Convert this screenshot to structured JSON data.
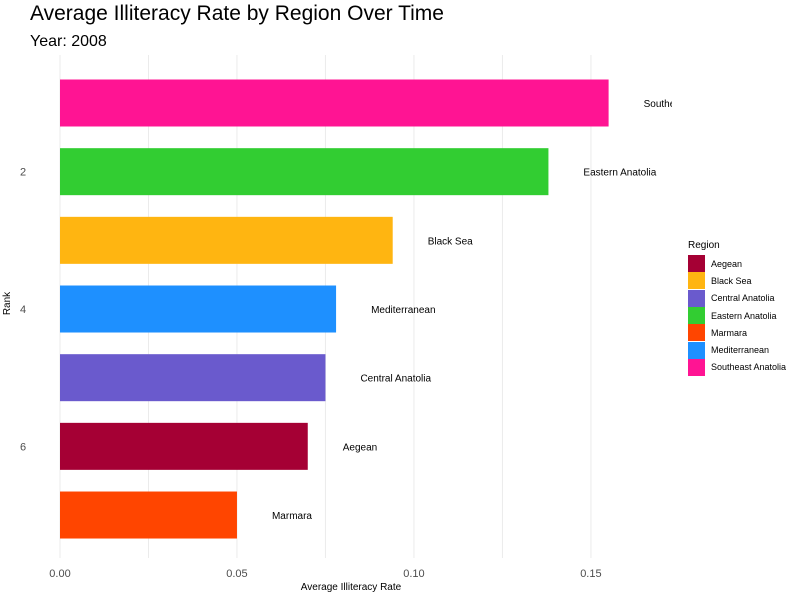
{
  "chart_data": {
    "type": "bar",
    "orientation": "horizontal",
    "title": "Average Illiteracy Rate by Region Over Time",
    "subtitle": "Year: 2008",
    "xlabel": "Average Illiteracy Rate",
    "ylabel": "Rank",
    "xlim": [
      0,
      0.175
    ],
    "x_ticks": [
      "0.00",
      "0.05",
      "0.10",
      "0.15"
    ],
    "x_tick_values": [
      0,
      0.05,
      0.1,
      0.15
    ],
    "y_ticks": [
      "2",
      "4",
      "6"
    ],
    "y_tick_values": [
      2,
      4,
      6
    ],
    "grid": true,
    "legend_placement": "right",
    "legend_title": "Region",
    "bars": [
      {
        "rank": 1,
        "label": "Southe",
        "region": "Southeast Anatolia",
        "value": 0.155,
        "color": "#FF1493"
      },
      {
        "rank": 2,
        "label": "Eastern Anatolia",
        "region": "Eastern Anatolia",
        "value": 0.138,
        "color": "#32CD32"
      },
      {
        "rank": 3,
        "label": "Black Sea",
        "region": "Black Sea",
        "value": 0.094,
        "color": "#FFB511"
      },
      {
        "rank": 4,
        "label": "Mediterranean",
        "region": "Mediterranean",
        "value": 0.078,
        "color": "#1E90FF"
      },
      {
        "rank": 5,
        "label": "Central Anatolia",
        "region": "Central Anatolia",
        "value": 0.075,
        "color": "#6A5ACD"
      },
      {
        "rank": 6,
        "label": "Aegean",
        "region": "Aegean",
        "value": 0.07,
        "color": "#A50034"
      },
      {
        "rank": 7,
        "label": "Marmara",
        "region": "Marmara",
        "value": 0.05,
        "color": "#FF4500"
      }
    ],
    "legend": [
      {
        "name": "Aegean",
        "color": "#A50034"
      },
      {
        "name": "Black Sea",
        "color": "#FFB511"
      },
      {
        "name": "Central Anatolia",
        "color": "#6A5ACD"
      },
      {
        "name": "Eastern Anatolia",
        "color": "#32CD32"
      },
      {
        "name": "Marmara",
        "color": "#FF4500"
      },
      {
        "name": "Mediterranean",
        "color": "#1E90FF"
      },
      {
        "name": "Southeast Anatolia",
        "color": "#FF1493"
      }
    ]
  }
}
